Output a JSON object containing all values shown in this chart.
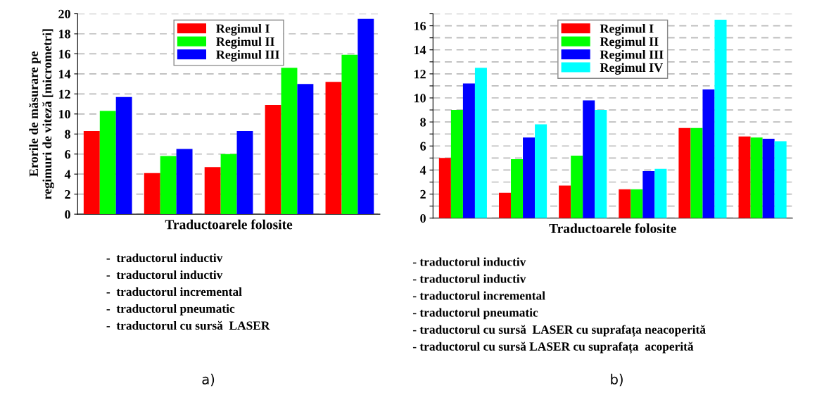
{
  "chart_data": [
    {
      "type": "bar",
      "categories": [
        null,
        null,
        null,
        null,
        null
      ],
      "xlabel": "Traductoarele folosite",
      "ylabel": "Erorile de măsurare pe\nregimuri de viteză [micrometri]",
      "series": [
        {
          "name": "Regimul I",
          "color": "#ff0000",
          "values": [
            8.3,
            4.1,
            4.7,
            10.9,
            13.2
          ]
        },
        {
          "name": "Regimul II",
          "color": "#00ff00",
          "values": [
            10.3,
            5.8,
            6.0,
            14.6,
            15.9
          ]
        },
        {
          "name": "Regimul III",
          "color": "#0000ff",
          "values": [
            11.7,
            6.5,
            8.3,
            13.0,
            19.5
          ]
        }
      ],
      "ylim": [
        0,
        20
      ],
      "yticks": [
        0,
        2,
        4,
        6,
        8,
        10,
        12,
        14,
        16,
        18,
        20
      ],
      "grid": "y",
      "legend": "top",
      "annotations": [
        "-  traductorul inductiv",
        "-  traductorul inductiv",
        "-  traductorul incremental",
        "-  traductorul pneumatic",
        "-  traductorul cu sursă  LASER",
        "a)"
      ]
    },
    {
      "type": "bar",
      "categories": [
        null,
        null,
        null,
        null,
        null,
        null
      ],
      "xlabel": "Traductoarele folosite",
      "series": [
        {
          "name": "Regimul I",
          "color": "#ff0000",
          "values": [
            5.0,
            2.1,
            2.7,
            2.4,
            7.5,
            6.8
          ]
        },
        {
          "name": "Regimul II",
          "color": "#00ff00",
          "values": [
            9.0,
            4.9,
            5.2,
            2.4,
            7.5,
            6.7
          ]
        },
        {
          "name": "Regimul III",
          "color": "#0000ff",
          "values": [
            11.2,
            6.7,
            9.8,
            3.9,
            10.7,
            6.6
          ]
        },
        {
          "name": "Regimul IV",
          "color": "#00ffff",
          "values": [
            12.5,
            7.8,
            9.0,
            4.1,
            16.5,
            6.4
          ]
        }
      ],
      "ylim": [
        0,
        17
      ],
      "yticks": [
        0,
        {
          "value": 1,
          "label": null
        },
        2,
        {
          "value": 3,
          "label": null
        },
        4,
        {
          "value": 5,
          "label": null
        },
        6,
        {
          "value": 7,
          "label": null
        },
        8,
        {
          "value": 9,
          "label": null
        },
        10,
        {
          "value": 11,
          "label": null
        },
        12,
        {
          "value": 13,
          "label": null
        },
        14,
        {
          "value": 15,
          "label": null
        },
        16,
        {
          "value": 17,
          "label": null
        }
      ],
      "grid": "y",
      "legend": "top",
      "annotations": [
        "- traductorul inductiv",
        "- traductorul inductiv",
        "- traductorul incremental",
        "- traductorul pneumatic",
        "- traductorul cu sursă  LASER cu suprafața neacoperită",
        "- traductorul cu sursă LASER cu suprafața  acoperită",
        "b)"
      ]
    }
  ]
}
